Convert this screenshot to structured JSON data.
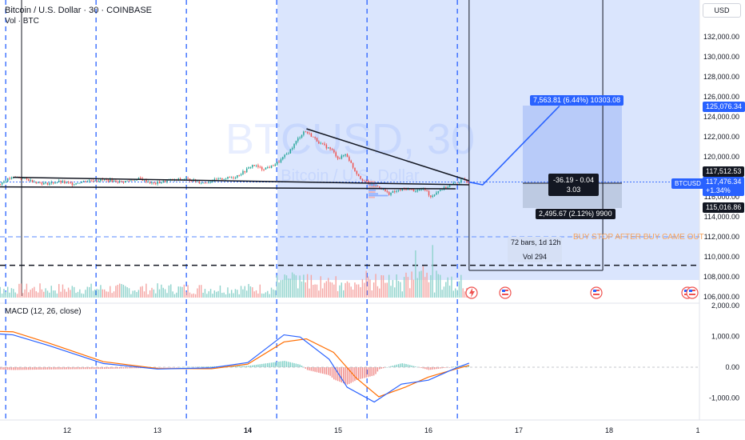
{
  "header": {
    "symbol_title": "Bitcoin / U.S. Dollar · 30 · COINBASE",
    "volume_indicator": "Vol · BTC",
    "currency_button": "USD",
    "watermark_symbol": "BTCUSD, 30",
    "watermark_name": "Bitcoin / U.S. Dollar"
  },
  "price_axis": {
    "ticks": [
      "132,000.00",
      "130,000.00",
      "128,000.00",
      "126,000.00",
      "124,000.00",
      "122,000.00",
      "120,000.00",
      "116,000.00",
      "114,000.00",
      "112,000.00",
      "110,000.00",
      "108,000.00",
      "106,000.00"
    ],
    "labels": {
      "target": "125,076.34",
      "upper": "117,512.53",
      "last": "117,476.34",
      "change": "+1.34%",
      "stop": "115,016.86",
      "symbol_tag": "BTCUSD"
    }
  },
  "macd_axis": {
    "ticks": [
      "2,000.00",
      "1,000.00",
      "0.00",
      "-1,000.00"
    ]
  },
  "time_axis": {
    "ticks": [
      "12",
      "13",
      "14",
      "15",
      "16",
      "17",
      "18",
      "1"
    ]
  },
  "indicators": {
    "macd_label": "MACD (12, 26, close)"
  },
  "drawings": {
    "target_label": "7,563.81 (6.44%) 10303.08",
    "entry_label_line1": "-36.19 - 0.04",
    "entry_label_line2": "3.03",
    "stop_label": "2,495.67 (2.12%) 9900",
    "range_bars": "72 bars, 1d 12h",
    "range_vol": "Vol 294",
    "note": "BUY STOP AFTER BUY CAME OUT"
  },
  "colors": {
    "up": "#26a69a",
    "down": "#ef5350",
    "accent_blue": "#2962ff",
    "selection_fill": "#bbd0fb",
    "note_orange": "#f7a35c",
    "macd_line": "#2962ff",
    "signal_line": "#ff6d00"
  },
  "icons": [
    "lightning-event-icon",
    "us-flag-event-icon"
  ],
  "chart_data": {
    "type": "candlestick",
    "title": "Bitcoin / U.S. Dollar · 30 · COINBASE",
    "ylim": [
      105500,
      133500
    ],
    "y_ticks": [
      106000,
      108000,
      110000,
      112000,
      114000,
      116000,
      120000,
      122000,
      124000,
      126000,
      128000,
      130000,
      132000
    ],
    "x_ticks": [
      "12",
      "13",
      "14",
      "15",
      "16",
      "17",
      "18",
      "1"
    ],
    "price_path": [
      [
        11.0,
        115800
      ],
      [
        11.08,
        116300
      ],
      [
        11.2,
        117100
      ],
      [
        11.35,
        117800
      ],
      [
        11.45,
        118000
      ],
      [
        11.6,
        117600
      ],
      [
        11.75,
        117300
      ],
      [
        11.9,
        117500
      ],
      [
        12.05,
        117300
      ],
      [
        12.2,
        117600
      ],
      [
        12.4,
        117700
      ],
      [
        12.6,
        117500
      ],
      [
        12.8,
        117800
      ],
      [
        12.95,
        117300
      ],
      [
        13.1,
        117600
      ],
      [
        13.3,
        117800
      ],
      [
        13.5,
        117400
      ],
      [
        13.65,
        117700
      ],
      [
        13.85,
        118000
      ],
      [
        13.95,
        118500
      ],
      [
        14.05,
        119200
      ],
      [
        14.15,
        118800
      ],
      [
        14.25,
        119000
      ],
      [
        14.35,
        119600
      ],
      [
        14.45,
        120500
      ],
      [
        14.55,
        121800
      ],
      [
        14.62,
        122600
      ],
      [
        14.7,
        122100
      ],
      [
        14.8,
        121300
      ],
      [
        14.92,
        120700
      ],
      [
        15.0,
        119800
      ],
      [
        15.08,
        120300
      ],
      [
        15.18,
        118600
      ],
      [
        15.25,
        117800
      ],
      [
        15.35,
        117200
      ],
      [
        15.45,
        117000
      ],
      [
        15.55,
        116300
      ],
      [
        15.65,
        116600
      ],
      [
        15.75,
        116800
      ],
      [
        15.85,
        116600
      ],
      [
        15.95,
        116800
      ],
      [
        16.02,
        116000
      ],
      [
        16.1,
        116600
      ],
      [
        16.2,
        117000
      ],
      [
        16.3,
        117400
      ],
      [
        16.38,
        117700
      ],
      [
        16.45,
        117476
      ]
    ],
    "projected_path": [
      [
        16.45,
        117476
      ],
      [
        16.6,
        117200
      ],
      [
        17.45,
        125076
      ]
    ],
    "trend_lines": [
      {
        "from": [
          11.4,
          117950
        ],
        "to": [
          16.45,
          117200
        ]
      },
      {
        "from": [
          14.65,
          122800
        ],
        "to": [
          16.45,
          117600
        ]
      },
      {
        "from": [
          11.0,
          117000
        ],
        "to": [
          16.3,
          116800
        ]
      }
    ],
    "levels": {
      "buy_stop": 112000,
      "support": 109150,
      "entry": 117476,
      "target": 125076,
      "stop": 115017
    },
    "macd": {
      "ylim": [
        -1700,
        2100
      ],
      "macd_line": [
        [
          11.0,
          1130
        ],
        [
          11.4,
          1050
        ],
        [
          11.8,
          700
        ],
        [
          12.4,
          120
        ],
        [
          13.0,
          -60
        ],
        [
          13.6,
          -20
        ],
        [
          14.0,
          150
        ],
        [
          14.4,
          1050
        ],
        [
          14.58,
          980
        ],
        [
          14.9,
          260
        ],
        [
          15.1,
          -650
        ],
        [
          15.4,
          -1130
        ],
        [
          15.7,
          -550
        ],
        [
          16.0,
          -420
        ],
        [
          16.3,
          -30
        ],
        [
          16.45,
          130
        ]
      ],
      "signal_line": [
        [
          11.0,
          1180
        ],
        [
          11.4,
          1150
        ],
        [
          11.8,
          780
        ],
        [
          12.4,
          180
        ],
        [
          13.0,
          -40
        ],
        [
          13.6,
          -50
        ],
        [
          14.0,
          100
        ],
        [
          14.4,
          820
        ],
        [
          14.65,
          920
        ],
        [
          14.95,
          480
        ],
        [
          15.2,
          -350
        ],
        [
          15.45,
          -960
        ],
        [
          15.75,
          -640
        ],
        [
          16.0,
          -320
        ],
        [
          16.3,
          -60
        ],
        [
          16.45,
          60
        ]
      ]
    }
  }
}
